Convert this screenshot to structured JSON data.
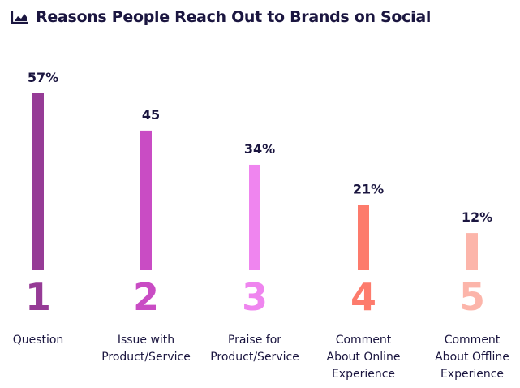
{
  "header": {
    "title": "Reasons People Reach Out to Brands on Social",
    "icon": "area-chart-icon"
  },
  "chart_data": {
    "type": "bar",
    "title": "Reasons People Reach Out to Brands on Social",
    "xlabel": "",
    "ylabel": "",
    "ylim": [
      0,
      57
    ],
    "grid": false,
    "categories": [
      "Question",
      "Issue with Product/Service",
      "Praise for Product/Service",
      "Comment About Online Experience",
      "Comment About Offline Experience"
    ],
    "category_lines": [
      [
        "Question"
      ],
      [
        "Issue with",
        "Product/Service"
      ],
      [
        "Praise for",
        "Product/Service"
      ],
      [
        "Comment",
        "About Online",
        "Experience"
      ],
      [
        "Comment",
        "About Offline",
        "Experience"
      ]
    ],
    "ranks": [
      "1",
      "2",
      "3",
      "4",
      "5"
    ],
    "values": [
      57,
      45,
      34,
      21,
      12
    ],
    "data_labels": [
      "57%",
      "45",
      "34%",
      "21%",
      "12%"
    ],
    "colors": [
      "#963b96",
      "#c94cc4",
      "#ef85ef",
      "#fd7b6c",
      "#fcb5aa"
    ]
  }
}
